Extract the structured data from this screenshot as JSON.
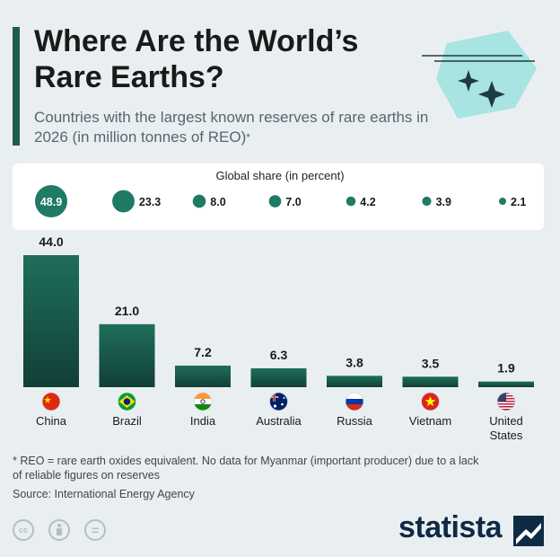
{
  "header": {
    "title": "Where Are the World’s Rare Earths?",
    "subtitle": "Countries with the largest known reserves of rare earths in 2026 (in million tonnes of REO)",
    "subtitle_mark": "*"
  },
  "share": {
    "title": "Global share (in percent)"
  },
  "chart_data": {
    "type": "bar",
    "categories": [
      "China",
      "Brazil",
      "India",
      "Australia",
      "Russia",
      "Vietnam",
      "United States"
    ],
    "values": [
      44.0,
      21.0,
      7.2,
      6.3,
      3.8,
      3.5,
      1.9
    ],
    "value_labels": [
      "44.0",
      "21.0",
      "7.2",
      "6.3",
      "3.8",
      "3.5",
      "1.9"
    ],
    "global_share": [
      48.9,
      23.3,
      8.0,
      7.0,
      4.2,
      3.9,
      2.1
    ],
    "global_share_labels": [
      "48.9",
      "23.3",
      "8.0",
      "7.0",
      "4.2",
      "3.9",
      "2.1"
    ],
    "title": "Where Are the World’s Rare Earths?",
    "xlabel": "",
    "ylabel": "",
    "ylim": [
      0,
      44
    ],
    "grid": false,
    "colors": {
      "bar_top": "#1f6e5b",
      "bar_bottom": "#123f37",
      "bubble": "#1f7a66"
    },
    "flags": [
      "flag-cn-icon",
      "flag-br-icon",
      "flag-in-icon",
      "flag-au-icon",
      "flag-ru-icon",
      "flag-vn-icon",
      "flag-us-icon"
    ]
  },
  "footer": {
    "footnote": "* REO = rare earth oxides equivalent. No data for Myanmar (important producer) due to a lack of reliable figures on reserves",
    "source": "Source: International Energy Agency",
    "brand": "statista",
    "license_icons": [
      "cc-icon",
      "attribution-icon",
      "no-derivatives-icon"
    ],
    "license_cc": "cc",
    "license_eq": "="
  }
}
